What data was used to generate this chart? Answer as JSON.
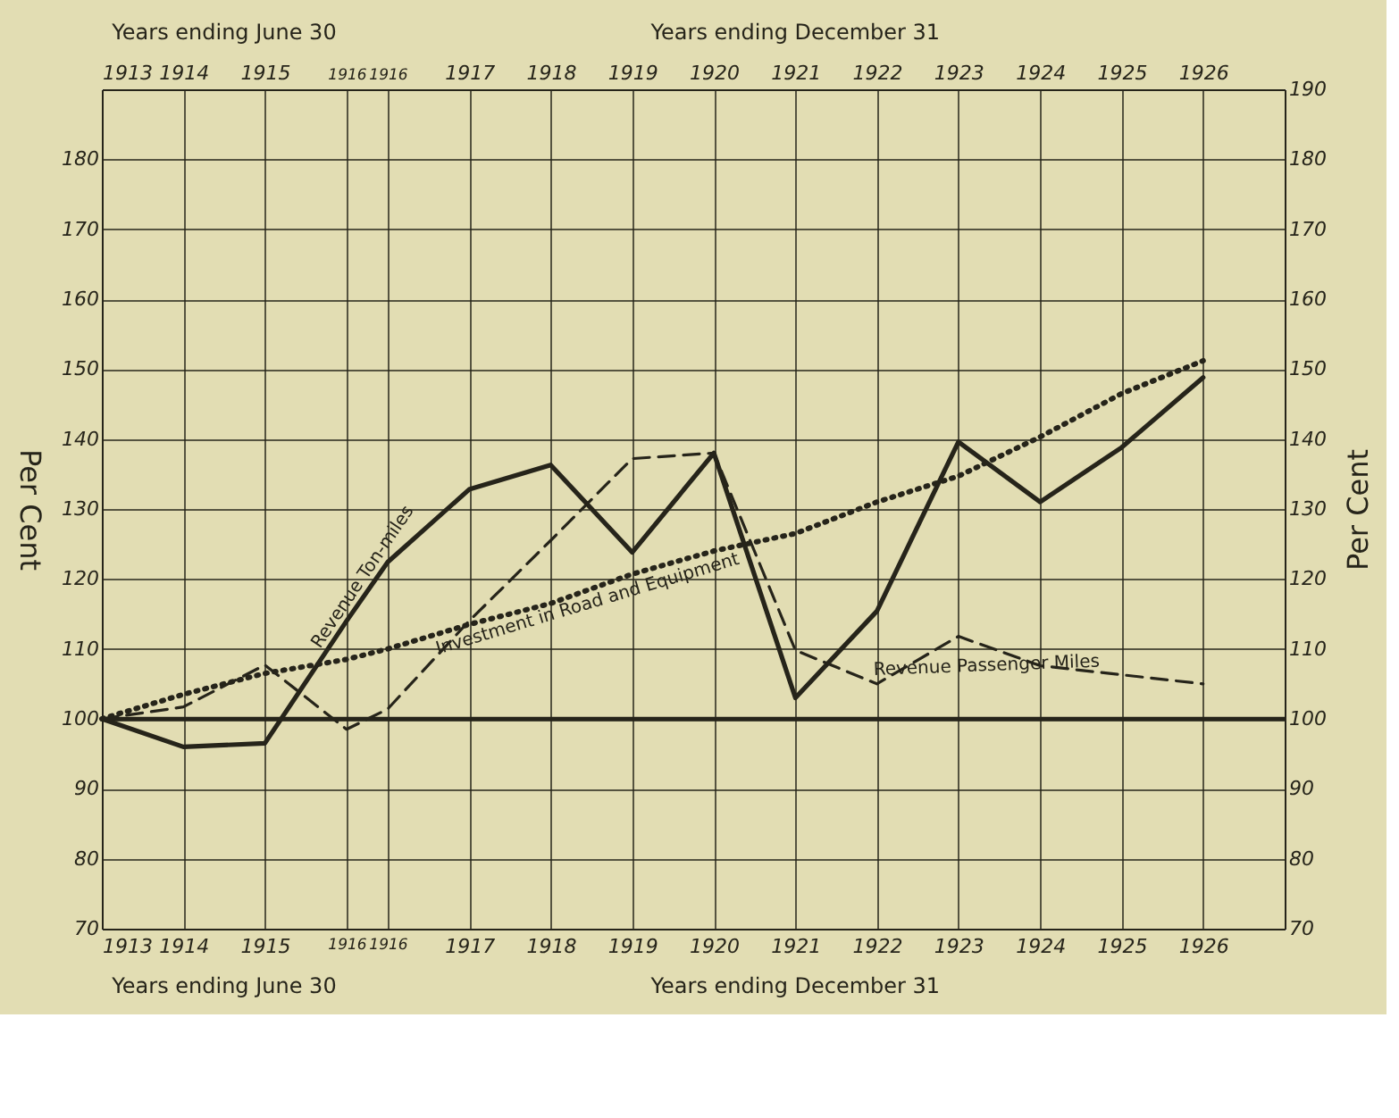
{
  "chart_data": {
    "type": "line",
    "x": [
      "1913-06-30",
      "1914-06-30",
      "1915-06-30",
      "1916-06-30",
      "1916-12-31",
      "1917-12-31",
      "1918-12-31",
      "1919-12-31",
      "1920-12-31",
      "1921-12-31",
      "1922-12-31",
      "1923-12-31",
      "1924-12-31",
      "1925-12-31",
      "1926-12-31"
    ],
    "series": [
      {
        "name": "Revenue Ton-miles",
        "color": "#26241a",
        "line_style": "solid",
        "values": [
          100,
          96,
          96.5,
          114,
          122.4,
          132.8,
          136.3,
          123.8,
          138,
          103,
          115.4,
          139.6,
          131,
          138.8,
          148.8
        ]
      },
      {
        "name": "Investment in Road and Equipment",
        "color": "#26241a",
        "line_style": "dotted",
        "values": [
          100,
          103.5,
          106.5,
          108.5,
          110,
          113.5,
          116.5,
          120.7,
          124,
          126.5,
          131,
          134.7,
          140.3,
          146.5,
          151.2
        ]
      },
      {
        "name": "Revenue Passenger Miles",
        "color": "#26241a",
        "line_style": "dashed",
        "values": [
          100,
          101.7,
          107.7,
          98.5,
          101.4,
          114,
          125.5,
          137.2,
          138,
          109.8,
          105,
          111.8,
          107.6,
          106.3,
          105
        ]
      }
    ],
    "xlim": [
      "1913-06-30",
      "1927-12-31"
    ],
    "xticks": [
      {
        "value": "1913-06-30",
        "label": "1913"
      },
      {
        "value": "1914-06-30",
        "label": "1914"
      },
      {
        "value": "1915-06-30",
        "label": "1915"
      },
      {
        "value": "1916-06-30",
        "label": "1916"
      },
      {
        "value": "1916-12-31",
        "label": "1916"
      },
      {
        "value": "1917-12-31",
        "label": "1917"
      },
      {
        "value": "1918-12-31",
        "label": "1918"
      },
      {
        "value": "1919-12-31",
        "label": "1919"
      },
      {
        "value": "1920-12-31",
        "label": "1920"
      },
      {
        "value": "1921-12-31",
        "label": "1921"
      },
      {
        "value": "1922-12-31",
        "label": "1922"
      },
      {
        "value": "1923-12-31",
        "label": "1923"
      },
      {
        "value": "1924-12-31",
        "label": "1924"
      },
      {
        "value": "1925-12-31",
        "label": "1925"
      },
      {
        "value": "1926-12-31",
        "label": "1926"
      }
    ],
    "x2lim": [
      "1913-06-30",
      "1927-12-31"
    ],
    "x2ticks": [
      {
        "value": "1913-06-30",
        "label": "1913"
      },
      {
        "value": "1914-06-30",
        "label": "1914"
      },
      {
        "value": "1915-06-30",
        "label": "1915"
      },
      {
        "value": "1916-06-30",
        "label": "1916"
      },
      {
        "value": "1916-12-31",
        "label": "1916"
      },
      {
        "value": "1917-12-31",
        "label": "1917"
      },
      {
        "value": "1918-12-31",
        "label": "1918"
      },
      {
        "value": "1919-12-31",
        "label": "1919"
      },
      {
        "value": "1920-12-31",
        "label": "1920"
      },
      {
        "value": "1921-12-31",
        "label": "1921"
      },
      {
        "value": "1922-12-31",
        "label": "1922"
      },
      {
        "value": "1923-12-31",
        "label": "1923"
      },
      {
        "value": "1924-12-31",
        "label": "1924"
      },
      {
        "value": "1925-12-31",
        "label": "1925"
      },
      {
        "value": "1926-12-31",
        "label": "1926"
      }
    ],
    "ylim": [
      70,
      190
    ],
    "yticks": [
      70,
      80,
      90,
      100,
      110,
      120,
      130,
      140,
      150,
      160,
      170,
      180
    ],
    "y2lim": [
      70,
      190
    ],
    "y2ticks": [
      70,
      80,
      90,
      100,
      110,
      120,
      130,
      140,
      150,
      160,
      170,
      180,
      190
    ],
    "ylabel": "Per Cent",
    "y2label": "Per Cent",
    "ref_lines": [
      {
        "axis": "y",
        "value": 100,
        "color": "#26241a"
      }
    ],
    "annotations": [
      "Years ending June 30",
      "Years ending December 31",
      "Years ending June 30",
      "Years ending December 31"
    ],
    "grid": true
  }
}
